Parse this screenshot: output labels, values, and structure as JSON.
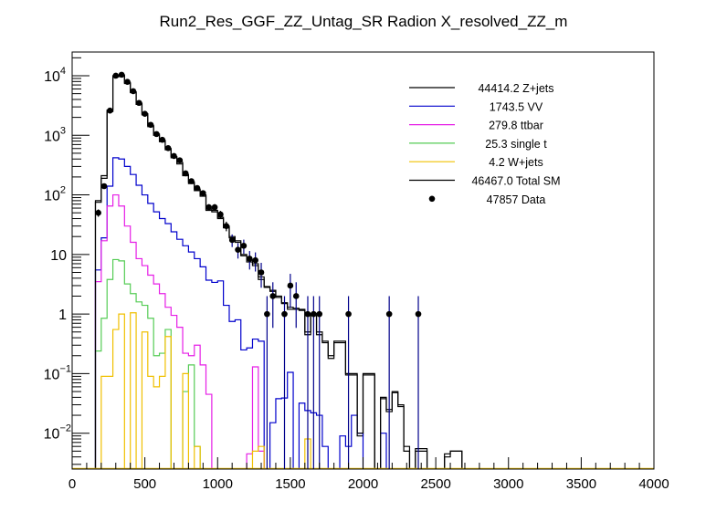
{
  "chart_data": {
    "type": "line",
    "subtype": "step-histogram",
    "title": "Run2_Res_GGF_ZZ_Untag_SR Radion  X_resolved_ZZ_m",
    "xlabel": "",
    "ylabel": "",
    "xlim": [
      0,
      4000
    ],
    "ylim": [
      0.0025,
      25000
    ],
    "yscale": "log",
    "grid": false,
    "legend_position": "top-right",
    "x_ticks": [
      "0",
      "500",
      "1000",
      "1500",
      "2000",
      "2500",
      "3000",
      "3500",
      "4000"
    ],
    "x_tick_values": [
      0,
      500,
      1000,
      1500,
      2000,
      2500,
      3000,
      3500,
      4000
    ],
    "y_ticks": [
      {
        "value": 10000,
        "base": "10",
        "exp": "4"
      },
      {
        "value": 1000,
        "base": "10",
        "exp": "3"
      },
      {
        "value": 100,
        "base": "10",
        "exp": "2"
      },
      {
        "value": 10,
        "base": "10",
        "exp": ""
      },
      {
        "value": 1,
        "base": "1",
        "exp": ""
      },
      {
        "value": 0.1,
        "base": "10",
        "exp": "−1"
      },
      {
        "value": 0.01,
        "base": "10",
        "exp": "−2"
      }
    ],
    "bin_width": 40,
    "bin_start": 160,
    "series": [
      {
        "name": "Z+jets",
        "legend": "44414.2 Z+jets",
        "color": "#000000",
        "values": [
          75,
          190,
          2500,
          9600,
          9900,
          7400,
          5200,
          3300,
          2200,
          1400,
          1000,
          780,
          570,
          420,
          330,
          210,
          155,
          118,
          95,
          55,
          52,
          40,
          28,
          19,
          16,
          9.5,
          7.5,
          6.5,
          3.8,
          2.8,
          2.4,
          1.9,
          1.5,
          1.2,
          1.2,
          1.15,
          0.45,
          0.95,
          0.45,
          0.33,
          0.18,
          0.33,
          0.33,
          0.095,
          0.095,
          0.009,
          0.095,
          0.095,
          0,
          0.038,
          0.023,
          0.048,
          0.028,
          0.005,
          0,
          0.005,
          0.005,
          0,
          0,
          0,
          0.004,
          0.005,
          0.005,
          0,
          0,
          0,
          0,
          0,
          0,
          0,
          0,
          0,
          0,
          0,
          0,
          0,
          0,
          0,
          0,
          0,
          0,
          0,
          0,
          0,
          0,
          0,
          0,
          0,
          0,
          0,
          0,
          0,
          0,
          0,
          0,
          0
        ]
      },
      {
        "name": "VV",
        "legend": "1743.5 VV",
        "color": "#0000cc",
        "values": [
          5.5,
          19,
          140,
          420,
          400,
          300,
          220,
          145,
          100,
          72,
          52,
          40,
          33,
          24,
          18,
          14,
          11,
          8.5,
          6.2,
          3.7,
          3.4,
          3.6,
          1.4,
          0.75,
          0.8,
          0.25,
          0.27,
          0.38,
          0.35,
          0,
          0.015,
          0.038,
          0.039,
          0.105,
          0,
          0.032,
          0.024,
          0.022,
          0.02,
          0.006,
          0,
          0,
          0.009,
          0.006,
          0.02,
          0.01,
          0,
          0,
          0,
          0.01,
          0,
          0,
          0,
          0,
          0,
          0,
          0,
          0,
          0,
          0,
          0,
          0,
          0,
          0,
          0,
          0,
          0,
          0,
          0,
          0,
          0,
          0,
          0,
          0,
          0,
          0,
          0,
          0,
          0,
          0,
          0,
          0,
          0,
          0,
          0,
          0,
          0,
          0,
          0,
          0,
          0,
          0,
          0,
          0,
          0,
          0
        ]
      },
      {
        "name": "ttbar",
        "legend": "279.8 ttbar",
        "color": "#e61ee6",
        "values": [
          3.5,
          17,
          65,
          100,
          65,
          30,
          16,
          8.5,
          6.5,
          4.5,
          3.2,
          2.2,
          1.3,
          0.95,
          0.6,
          0.22,
          0.2,
          0.3,
          0.14,
          0.045,
          0,
          0,
          0,
          0,
          0,
          0,
          0.0045,
          0.13,
          0.005,
          0,
          0,
          0,
          0,
          0,
          0,
          0,
          0,
          0,
          0,
          0,
          0,
          0,
          0,
          0,
          0,
          0,
          0,
          0,
          0,
          0,
          0,
          0,
          0,
          0,
          0,
          0,
          0,
          0,
          0,
          0,
          0,
          0,
          0,
          0,
          0,
          0,
          0,
          0,
          0,
          0,
          0,
          0,
          0,
          0,
          0,
          0,
          0,
          0,
          0,
          0,
          0,
          0,
          0,
          0,
          0,
          0,
          0,
          0,
          0,
          0,
          0,
          0,
          0,
          0,
          0,
          0
        ]
      },
      {
        "name": "single t",
        "legend": "25.3 single t",
        "color": "#55cc55",
        "values": [
          0.24,
          0.85,
          3.8,
          8.2,
          7.8,
          3.2,
          2.2,
          1.6,
          1.4,
          0.85,
          0.2,
          0.22,
          0.55,
          0,
          0,
          0.05,
          0.14,
          0.006,
          0,
          0,
          0,
          0,
          0,
          0,
          0,
          0,
          0,
          0,
          0,
          0,
          0,
          0,
          0,
          0,
          0,
          0,
          0,
          0,
          0,
          0,
          0,
          0,
          0,
          0,
          0,
          0,
          0,
          0,
          0,
          0,
          0,
          0,
          0,
          0,
          0,
          0,
          0,
          0,
          0,
          0,
          0,
          0,
          0,
          0,
          0,
          0,
          0,
          0,
          0,
          0,
          0,
          0,
          0,
          0,
          0,
          0,
          0,
          0,
          0,
          0,
          0,
          0,
          0,
          0,
          0,
          0,
          0,
          0,
          0,
          0,
          0,
          0,
          0,
          0,
          0,
          0
        ]
      },
      {
        "name": "W+jets",
        "legend": "4.2 W+jets",
        "color": "#f0c000",
        "values": [
          0,
          0.09,
          0.09,
          0.55,
          1.0,
          0,
          1.05,
          0,
          0.5,
          0.09,
          0.06,
          0.09,
          0.42,
          0,
          0,
          0.1,
          0,
          0.006,
          0,
          0,
          0,
          0,
          0,
          0,
          0,
          0,
          0,
          0.005,
          0.006,
          0,
          0,
          0,
          0,
          0,
          0,
          0,
          0.008,
          0,
          0,
          0,
          0,
          0,
          0,
          0,
          0,
          0,
          0,
          0,
          0,
          0,
          0,
          0,
          0,
          0,
          0,
          0,
          0,
          0,
          0,
          0,
          0,
          0,
          0,
          0,
          0,
          0,
          0,
          0,
          0,
          0,
          0,
          0,
          0,
          0,
          0,
          0,
          0,
          0,
          0,
          0,
          0,
          0,
          0,
          0,
          0,
          0,
          0,
          0,
          0,
          0,
          0,
          0,
          0,
          0,
          0,
          0
        ]
      },
      {
        "name": "Total SM",
        "legend": "46467.0 Total SM",
        "color": "#000000",
        "values": [
          80,
          210,
          2650,
          10000,
          10300,
          7700,
          5400,
          3450,
          2300,
          1470,
          1050,
          820,
          600,
          440,
          350,
          220,
          165,
          125,
          100,
          58,
          55,
          42,
          30,
          20,
          17,
          10,
          8,
          7,
          4.2,
          2.9,
          2.5,
          2.0,
          1.55,
          1.3,
          1.25,
          1.2,
          0.5,
          1.0,
          0.5,
          0.35,
          0.2,
          0.35,
          0.35,
          0.1,
          0.1,
          0.01,
          0.1,
          0.1,
          0,
          0.04,
          0.025,
          0.05,
          0.03,
          0.006,
          0,
          0.0055,
          0.0055,
          0,
          0,
          0,
          0.0045,
          0.005,
          0.005,
          0,
          0,
          0,
          0,
          0,
          0,
          0,
          0,
          0,
          0,
          0,
          0,
          0,
          0,
          0,
          0,
          0,
          0,
          0,
          0,
          0,
          0,
          0,
          0,
          0,
          0,
          0,
          0,
          0,
          0,
          0,
          0,
          0
        ]
      }
    ],
    "data_points": {
      "name": "Data",
      "legend": "47857 Data",
      "color": "#000000",
      "x": [
        180,
        220,
        260,
        300,
        340,
        380,
        420,
        460,
        500,
        540,
        580,
        620,
        660,
        700,
        740,
        780,
        820,
        860,
        900,
        940,
        980,
        1020,
        1060,
        1100,
        1140,
        1180,
        1220,
        1260,
        1300,
        1340,
        1380,
        1460,
        1500,
        1540,
        1620,
        1660,
        1700,
        1900,
        2180,
        2380
      ],
      "y": [
        50,
        140,
        2600,
        10000,
        10400,
        7900,
        5500,
        3500,
        2300,
        1500,
        1050,
        840,
        610,
        450,
        380,
        230,
        170,
        130,
        107,
        62,
        62,
        47,
        30,
        17.5,
        12,
        14,
        8.5,
        8,
        5,
        1,
        2,
        1,
        3,
        2,
        1,
        1,
        1,
        1,
        1,
        1
      ]
    }
  }
}
